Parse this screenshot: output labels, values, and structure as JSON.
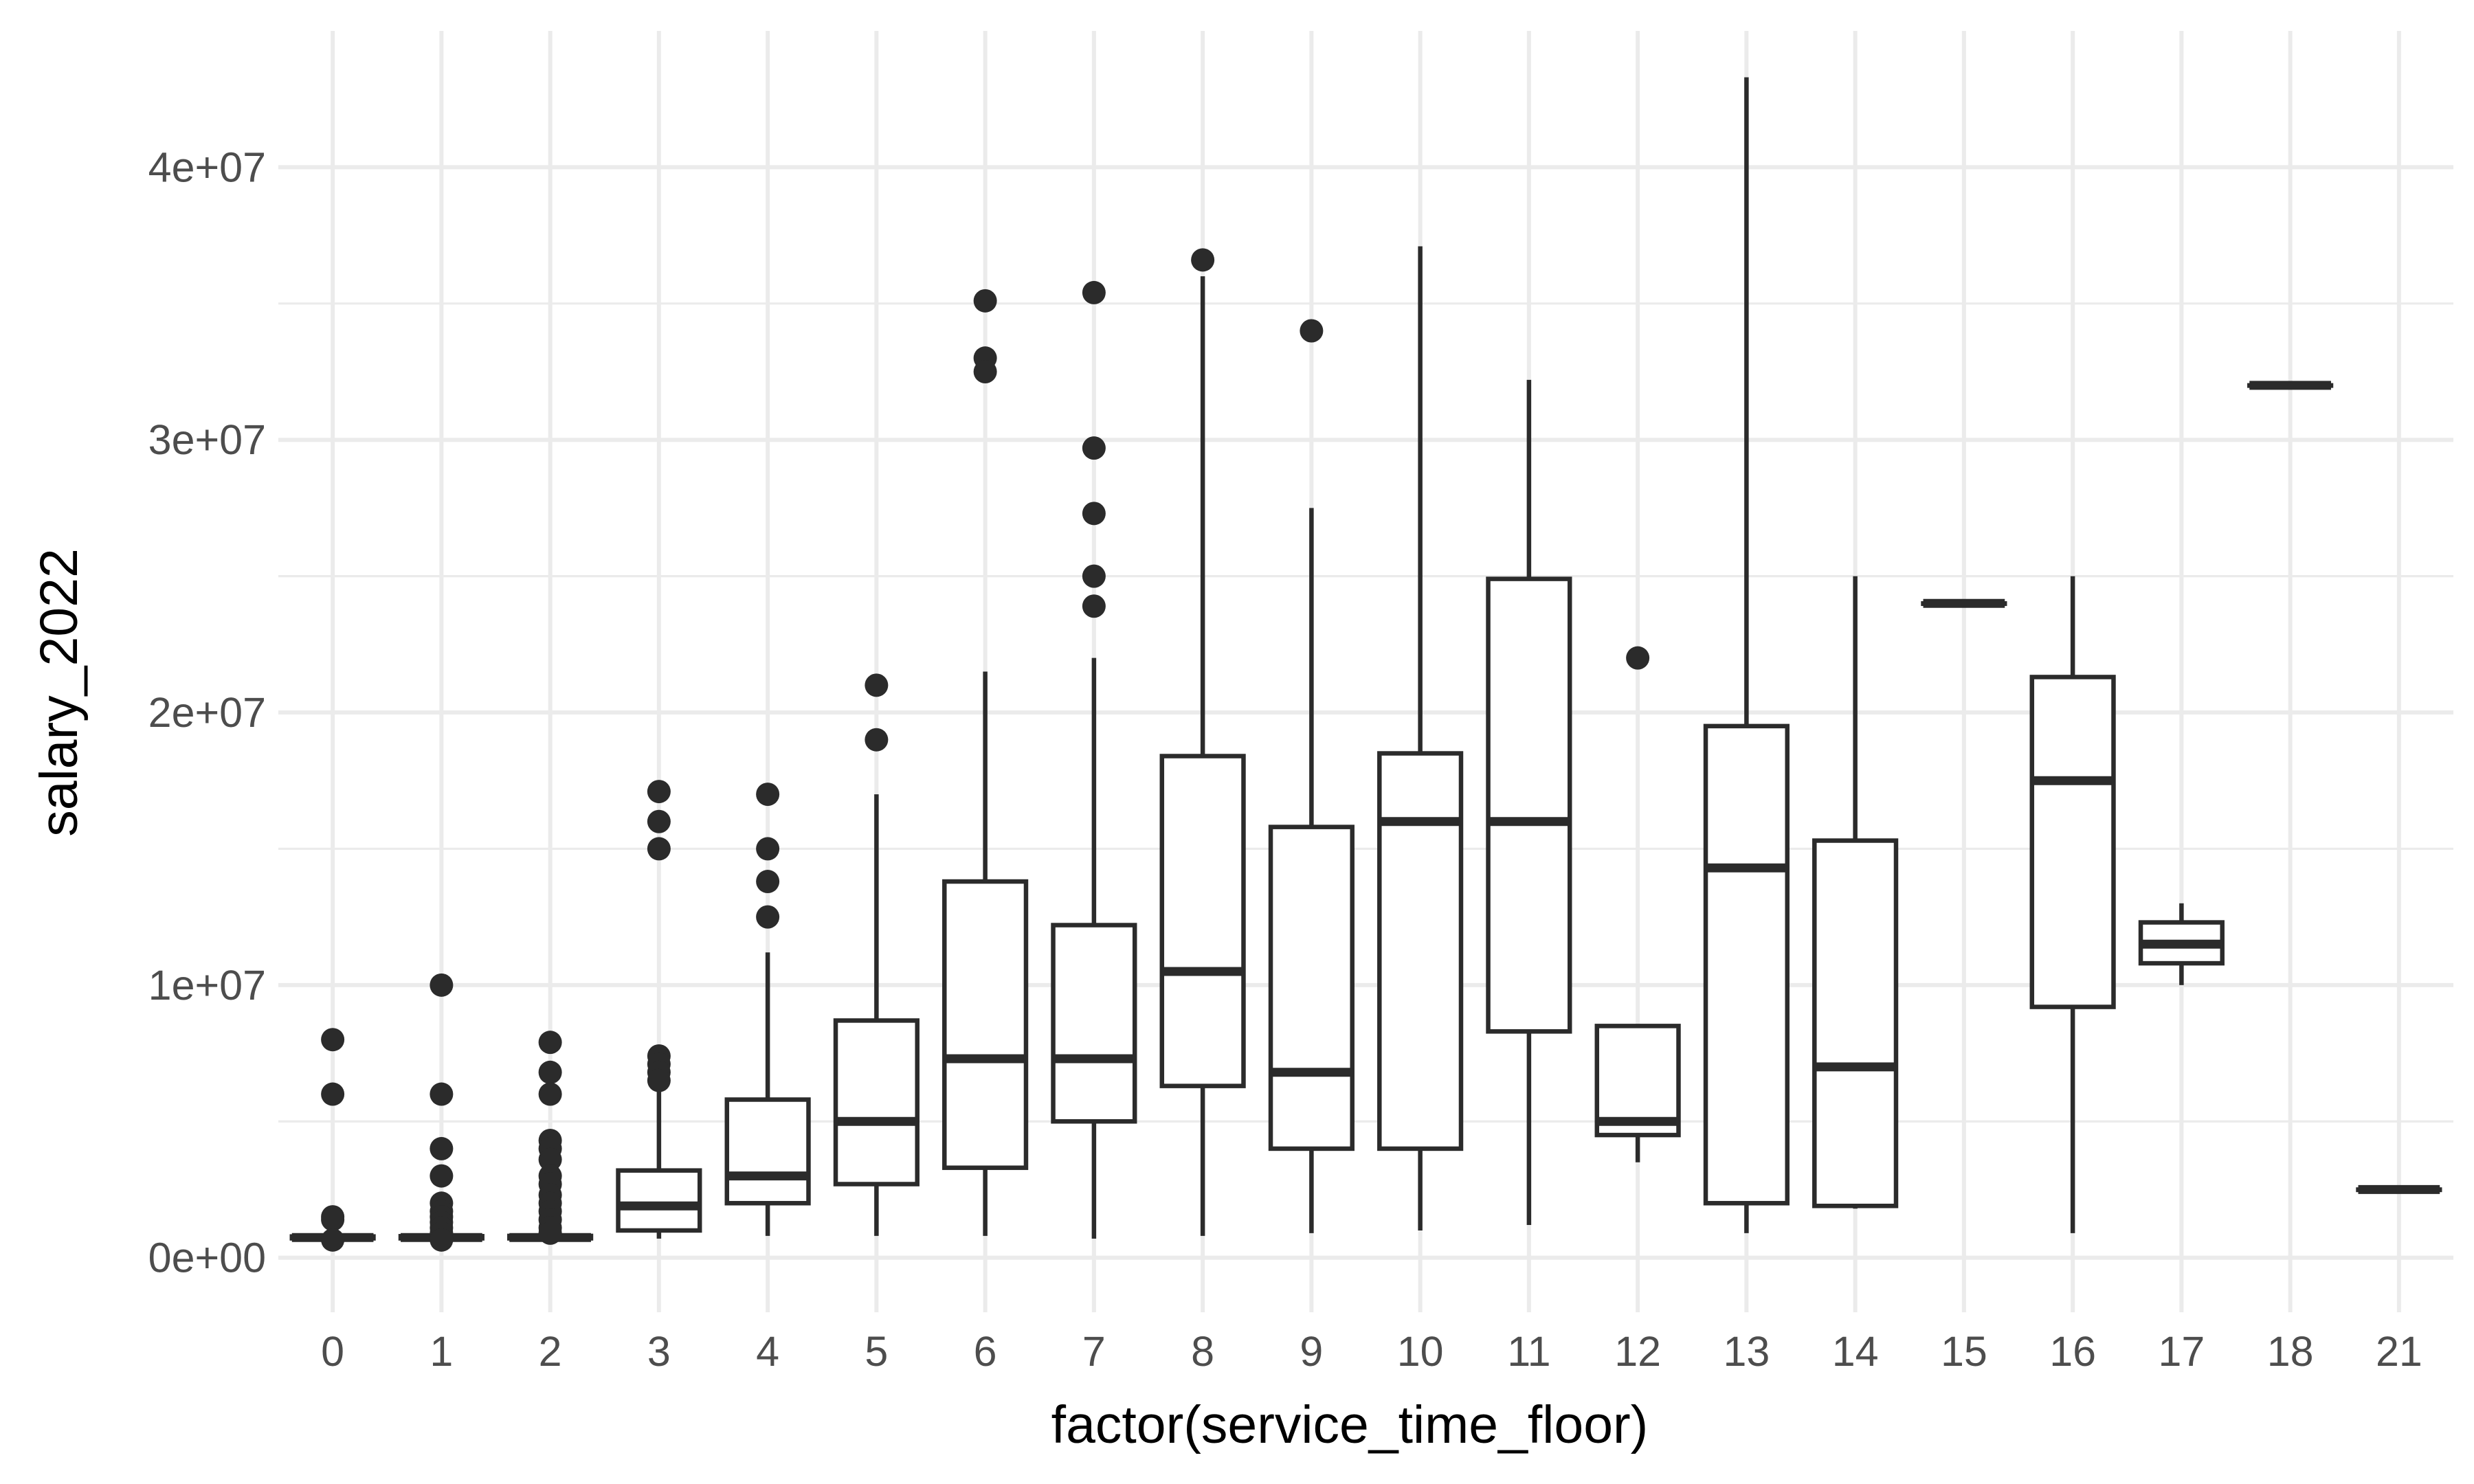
{
  "chart_data": {
    "type": "boxplot",
    "title": "",
    "xlabel": "factor(service_time_floor)",
    "ylabel": "salary_2022",
    "ylim": [
      -2000000,
      45000000
    ],
    "y_ticks": [
      {
        "value": 0,
        "label": "0e+00"
      },
      {
        "value": 10000000,
        "label": "1e+07"
      },
      {
        "value": 20000000,
        "label": "2e+07"
      },
      {
        "value": 30000000,
        "label": "3e+07"
      },
      {
        "value": 40000000,
        "label": "4e+07"
      }
    ],
    "y_minor_ticks": [
      5000000,
      15000000,
      25000000,
      35000000
    ],
    "grid": true,
    "box_color": "#2b2b2b",
    "grid_color": "#ebebeb",
    "categories": [
      "0",
      "1",
      "2",
      "3",
      "4",
      "5",
      "6",
      "7",
      "8",
      "9",
      "10",
      "11",
      "12",
      "13",
      "14",
      "15",
      "16",
      "17",
      "18",
      "21"
    ],
    "boxes": [
      {
        "category": "0",
        "lower_whisker": 680000,
        "q1": 710000,
        "median": 740000,
        "q3": 780000,
        "upper_whisker": 800000,
        "outliers": [
          8000000,
          6000000,
          1500000,
          1400000,
          650000
        ]
      },
      {
        "category": "1",
        "lower_whisker": 680000,
        "q1": 710000,
        "median": 740000,
        "q3": 790000,
        "upper_whisker": 820000,
        "outliers": [
          10000000,
          6000000,
          4000000,
          3000000,
          2000000,
          1700000,
          1500000,
          1300000,
          1100000,
          900000,
          650000
        ]
      },
      {
        "category": "2",
        "lower_whisker": 680000,
        "q1": 710000,
        "median": 740000,
        "q3": 800000,
        "upper_whisker": 830000,
        "outliers": [
          7900000,
          6800000,
          6000000,
          4300000,
          4000000,
          3600000,
          3000000,
          2700000,
          2300000,
          2000000,
          1700000,
          1400000,
          1100000,
          900000
        ]
      },
      {
        "category": "3",
        "lower_whisker": 700000,
        "q1": 1000000,
        "median": 1900000,
        "q3": 3200000,
        "upper_whisker": 6300000,
        "outliers": [
          17100000,
          16000000,
          15000000,
          7400000,
          7100000,
          6800000,
          6500000
        ]
      },
      {
        "category": "4",
        "lower_whisker": 800000,
        "q1": 2000000,
        "median": 3000000,
        "q3": 5800000,
        "upper_whisker": 11200000,
        "outliers": [
          17000000,
          15000000,
          13800000,
          12500000
        ]
      },
      {
        "category": "5",
        "lower_whisker": 800000,
        "q1": 2700000,
        "median": 5000000,
        "q3": 8700000,
        "upper_whisker": 17000000,
        "outliers": [
          21000000,
          19000000
        ]
      },
      {
        "category": "6",
        "lower_whisker": 800000,
        "q1": 3300000,
        "median": 7300000,
        "q3": 13800000,
        "upper_whisker": 21500000,
        "outliers": [
          35100000,
          33000000,
          32500000
        ]
      },
      {
        "category": "7",
        "lower_whisker": 700000,
        "q1": 5000000,
        "median": 7300000,
        "q3": 12200000,
        "upper_whisker": 22000000,
        "outliers": [
          35400000,
          29700000,
          27300000,
          25000000,
          23900000
        ]
      },
      {
        "category": "8",
        "lower_whisker": 800000,
        "q1": 6300000,
        "median": 10500000,
        "q3": 18400000,
        "upper_whisker": 36000000,
        "outliers": [
          36600000
        ]
      },
      {
        "category": "9",
        "lower_whisker": 900000,
        "q1": 4000000,
        "median": 6800000,
        "q3": 15800000,
        "upper_whisker": 27500000,
        "outliers": [
          34000000
        ]
      },
      {
        "category": "10",
        "lower_whisker": 1000000,
        "q1": 4000000,
        "median": 16000000,
        "q3": 18500000,
        "upper_whisker": 37100000,
        "outliers": []
      },
      {
        "category": "11",
        "lower_whisker": 1200000,
        "q1": 8300000,
        "median": 16000000,
        "q3": 24900000,
        "upper_whisker": 32200000,
        "outliers": []
      },
      {
        "category": "12",
        "lower_whisker": 3500000,
        "q1": 4500000,
        "median": 5000000,
        "q3": 8500000,
        "upper_whisker": 8500000,
        "outliers": [
          22000000
        ]
      },
      {
        "category": "13",
        "lower_whisker": 900000,
        "q1": 2000000,
        "median": 14300000,
        "q3": 19500000,
        "upper_whisker": 43300000,
        "outliers": []
      },
      {
        "category": "14",
        "lower_whisker": 1800000,
        "q1": 1900000,
        "median": 7000000,
        "q3": 15300000,
        "upper_whisker": 25000000,
        "outliers": []
      },
      {
        "category": "15",
        "lower_whisker": 24000000,
        "q1": 24000000,
        "median": 24000000,
        "q3": 24000000,
        "upper_whisker": 24000000,
        "outliers": []
      },
      {
        "category": "16",
        "lower_whisker": 900000,
        "q1": 9200000,
        "median": 17500000,
        "q3": 21300000,
        "upper_whisker": 25000000,
        "outliers": []
      },
      {
        "category": "17",
        "lower_whisker": 10000000,
        "q1": 10800000,
        "median": 11500000,
        "q3": 12300000,
        "upper_whisker": 13000000,
        "outliers": []
      },
      {
        "category": "18",
        "lower_whisker": 32000000,
        "q1": 32000000,
        "median": 32000000,
        "q3": 32000000,
        "upper_whisker": 32000000,
        "outliers": []
      },
      {
        "category": "21",
        "lower_whisker": 2500000,
        "q1": 2500000,
        "median": 2500000,
        "q3": 2500000,
        "upper_whisker": 2500000,
        "outliers": []
      }
    ]
  }
}
